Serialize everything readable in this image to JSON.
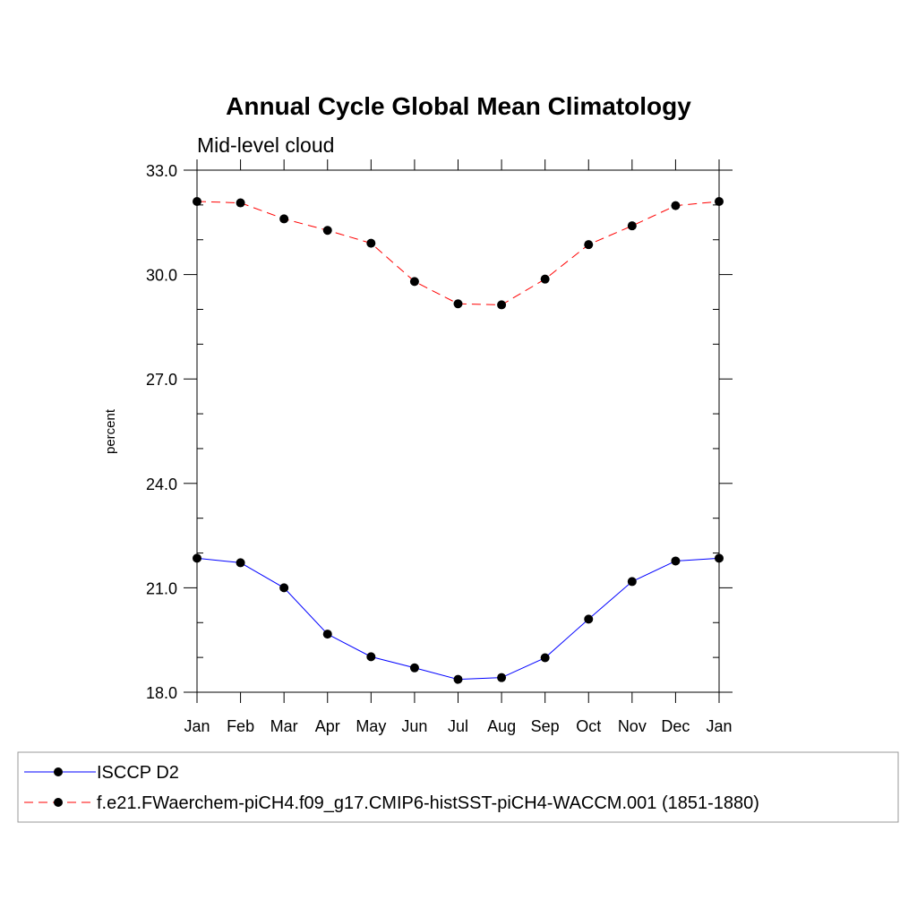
{
  "chart_data": {
    "type": "line",
    "title": "Annual Cycle Global Mean Climatology",
    "subtitle": "Mid-level cloud",
    "xlabel": "",
    "ylabel": "percent",
    "categories": [
      "Jan",
      "Feb",
      "Mar",
      "Apr",
      "May",
      "Jun",
      "Jul",
      "Aug",
      "Sep",
      "Oct",
      "Nov",
      "Dec",
      "Jan"
    ],
    "ylim": [
      18.0,
      33.0
    ],
    "yticks": [
      "18.0",
      "21.0",
      "24.0",
      "27.0",
      "30.0",
      "33.0"
    ],
    "grid": false,
    "legend_position": "bottom",
    "series": [
      {
        "name": "ISCCP D2",
        "color": "#0000ff",
        "line_style": "solid",
        "marker": "filled-circle",
        "values": [
          21.85,
          21.72,
          21.0,
          19.67,
          19.02,
          18.7,
          18.37,
          18.42,
          18.99,
          20.1,
          21.18,
          21.77,
          21.85
        ]
      },
      {
        "name": "f.e21.FWaerchem-piCH4.f09_g17.CMIP6-histSST-piCH4-WACCM.001 (1851-1880)",
        "color": "#ff0000",
        "line_style": "dashed",
        "marker": "filled-circle",
        "values": [
          32.1,
          32.06,
          31.6,
          31.27,
          30.9,
          29.8,
          29.16,
          29.13,
          29.87,
          30.86,
          31.4,
          31.98,
          32.1
        ]
      }
    ]
  }
}
